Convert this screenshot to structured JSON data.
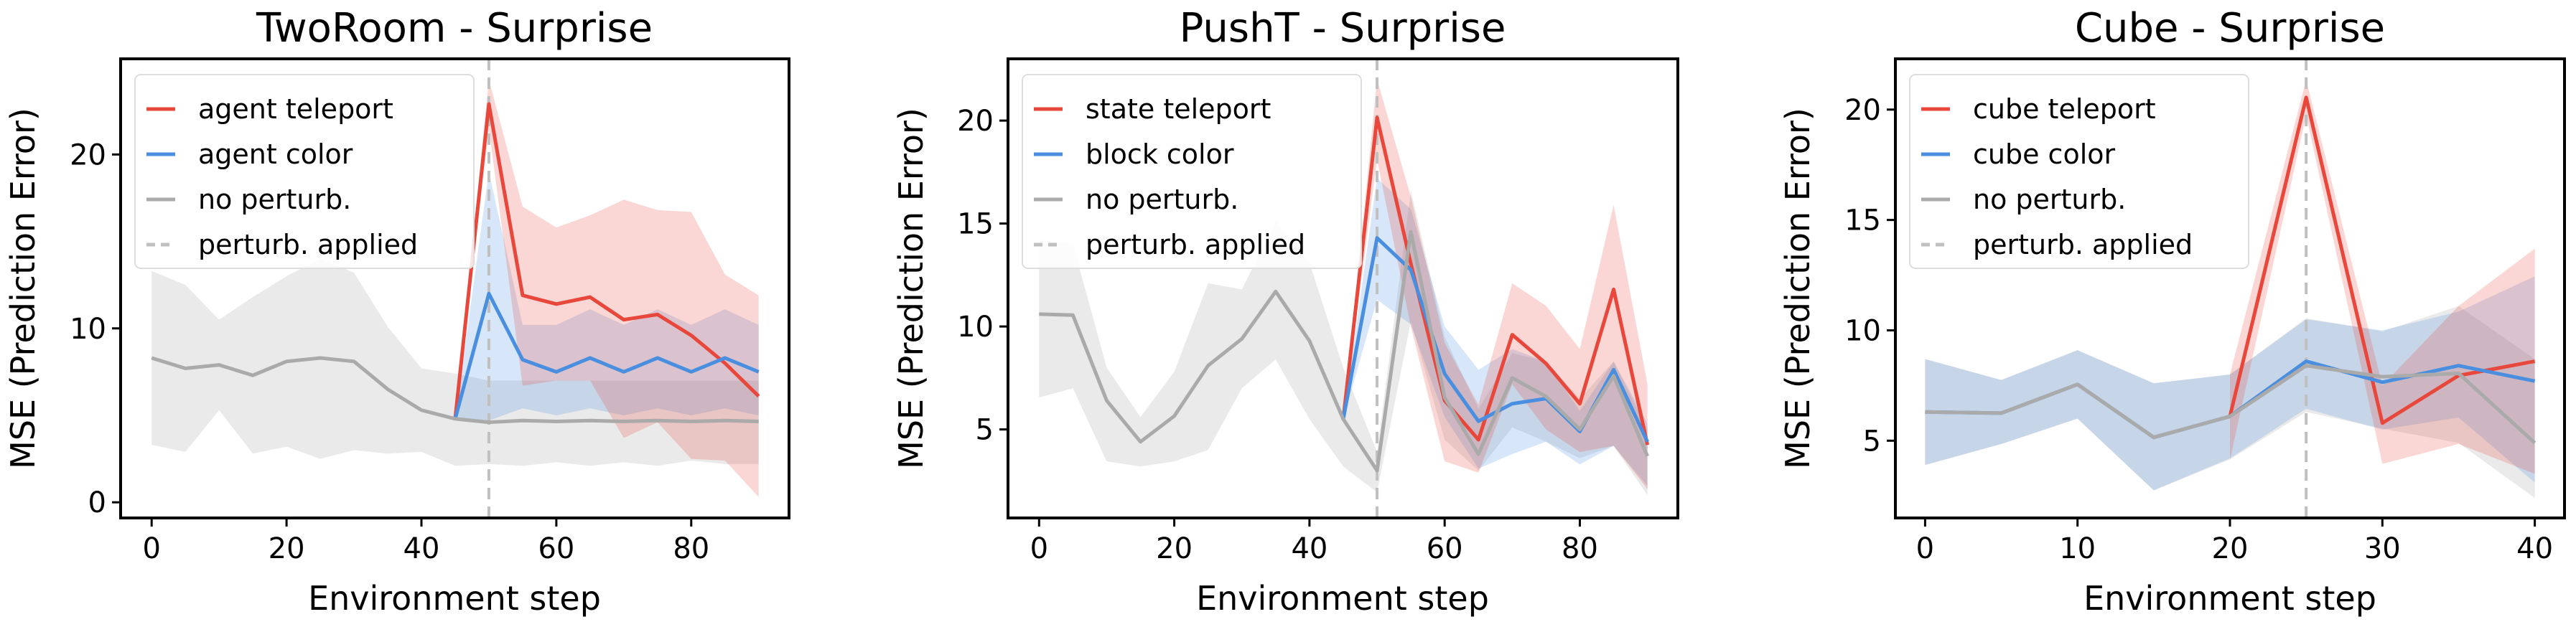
{
  "colors": {
    "teleport": "#e8473c",
    "color": "#4a8fdf",
    "none": "#aaaaaa",
    "perturb": "#c0c0c0"
  },
  "chart_data": [
    {
      "type": "line",
      "title": "TwoRoom - Surprise",
      "xlabel": "Environment step",
      "ylabel": "MSE (Prediction Error)",
      "xlim": [
        -4.6,
        94.5
      ],
      "ylim": [
        -0.9,
        25.5
      ],
      "xticks": [
        0,
        20,
        40,
        60,
        80
      ],
      "yticks": [
        0,
        10,
        20
      ],
      "grid": false,
      "legend_position": "top-left",
      "perturb_step": 50,
      "series": [
        {
          "name": "agent teleport",
          "key": "teleport",
          "x": [
            45,
            50,
            55,
            60,
            65,
            70,
            75,
            80,
            85,
            90
          ],
          "y": [
            4.8,
            22.9,
            11.9,
            11.4,
            11.8,
            10.5,
            10.8,
            9.6,
            8.0,
            6.1
          ],
          "upper": [
            4.8,
            24.3,
            17.0,
            15.8,
            16.5,
            17.4,
            16.8,
            16.7,
            13.1,
            11.9
          ],
          "lower": [
            4.8,
            21.5,
            6.7,
            7.0,
            7.0,
            3.7,
            4.6,
            2.5,
            2.4,
            0.3
          ]
        },
        {
          "name": "agent color",
          "key": "color",
          "x": [
            45,
            50,
            55,
            60,
            65,
            70,
            75,
            80,
            85,
            90
          ],
          "y": [
            4.8,
            12.0,
            8.2,
            7.5,
            8.3,
            7.5,
            8.3,
            7.5,
            8.3,
            7.5
          ],
          "upper": [
            4.8,
            19.0,
            10.2,
            10.2,
            11.1,
            10.2,
            11.1,
            10.2,
            11.1,
            10.2
          ],
          "lower": [
            4.8,
            4.7,
            5.4,
            5.0,
            5.4,
            5.0,
            5.4,
            5.0,
            5.4,
            5.0
          ]
        },
        {
          "name": "no perturb.",
          "key": "none",
          "x": [
            0,
            5,
            10,
            15,
            20,
            25,
            30,
            35,
            40,
            45,
            50,
            55,
            60,
            65,
            70,
            75,
            80,
            85,
            90
          ],
          "y": [
            8.3,
            7.7,
            7.9,
            7.3,
            8.1,
            8.3,
            8.1,
            6.5,
            5.3,
            4.8,
            4.6,
            4.7,
            4.65,
            4.7,
            4.65,
            4.7,
            4.65,
            4.7,
            4.65
          ],
          "upper": [
            13.3,
            12.5,
            10.5,
            11.8,
            13.0,
            14.0,
            13.2,
            10.1,
            7.7,
            7.4,
            7.0,
            7.0,
            7.0,
            7.0,
            7.0,
            7.0,
            7.0,
            7.0,
            7.0
          ],
          "lower": [
            3.3,
            2.9,
            5.3,
            2.8,
            3.2,
            2.5,
            3.0,
            2.8,
            2.9,
            2.1,
            2.2,
            2.1,
            2.3,
            2.1,
            2.3,
            2.1,
            2.4,
            2.2,
            2.2
          ]
        }
      ]
    },
    {
      "type": "line",
      "title": "PushT - Surprise",
      "xlabel": "Environment step",
      "ylabel": "MSE (Prediction Error)",
      "xlim": [
        -4.6,
        94.5
      ],
      "ylim": [
        0.7,
        23.0
      ],
      "xticks": [
        0,
        20,
        40,
        60,
        80
      ],
      "yticks": [
        5,
        10,
        15,
        20
      ],
      "grid": false,
      "legend_position": "top-left",
      "perturb_step": 50,
      "series": [
        {
          "name": "state teleport",
          "key": "teleport",
          "x": [
            45,
            50,
            55,
            60,
            65,
            70,
            75,
            80,
            85,
            90
          ],
          "y": [
            5.5,
            20.15,
            13.05,
            6.4,
            4.5,
            9.6,
            8.2,
            6.25,
            11.8,
            4.25
          ],
          "upper": [
            5.5,
            22.0,
            16.3,
            9.2,
            6.2,
            12.1,
            11.0,
            8.9,
            15.9,
            7.2
          ],
          "lower": [
            5.5,
            18.1,
            10.0,
            3.45,
            2.9,
            7.2,
            5.0,
            3.9,
            4.2,
            2.1
          ]
        },
        {
          "name": "block color",
          "key": "color",
          "x": [
            45,
            50,
            55,
            60,
            65,
            70,
            75,
            80,
            85,
            90
          ],
          "y": [
            5.5,
            14.3,
            12.75,
            7.7,
            5.4,
            6.25,
            6.5,
            4.9,
            7.9,
            4.4
          ],
          "upper": [
            5.5,
            17.2,
            15.7,
            10.0,
            7.9,
            8.9,
            8.3,
            5.9,
            8.3,
            5.3
          ],
          "lower": [
            5.5,
            11.3,
            10.1,
            5.6,
            3.1,
            3.8,
            4.4,
            3.3,
            4.2,
            2.25
          ]
        },
        {
          "name": "no perturb.",
          "key": "none",
          "x": [
            0,
            5,
            10,
            15,
            20,
            25,
            30,
            35,
            40,
            45,
            50,
            55,
            60,
            65,
            70,
            75,
            80,
            85,
            90
          ],
          "y": [
            10.6,
            10.55,
            6.4,
            4.4,
            5.65,
            8.1,
            9.4,
            11.7,
            9.3,
            5.5,
            3.0,
            14.6,
            6.55,
            3.8,
            7.5,
            6.6,
            5.0,
            7.6,
            3.7
          ],
          "upper": [
            14.2,
            14.0,
            8.0,
            5.6,
            7.8,
            12.1,
            11.8,
            15.1,
            13.1,
            8.0,
            3.9,
            16.6,
            9.5,
            6.0,
            8.7,
            8.3,
            6.5,
            8.3,
            5.0
          ],
          "lower": [
            6.55,
            7.0,
            3.45,
            3.2,
            3.45,
            4.0,
            7.0,
            8.4,
            5.5,
            3.2,
            1.95,
            10.25,
            4.5,
            3.0,
            5.1,
            4.4,
            3.6,
            4.2,
            1.8
          ]
        }
      ]
    },
    {
      "type": "line",
      "title": "Cube - Surprise",
      "xlabel": "Environment step",
      "ylabel": "MSE (Prediction Error)",
      "xlim": [
        -1.95,
        41.95
      ],
      "ylim": [
        1.5,
        22.3
      ],
      "xticks": [
        0,
        10,
        20,
        30,
        40
      ],
      "yticks": [
        5,
        10,
        15,
        20
      ],
      "grid": false,
      "legend_position": "top-left",
      "perturb_step": 25,
      "series": [
        {
          "name": "cube teleport",
          "key": "teleport",
          "x": [
            20,
            25,
            30,
            35,
            40
          ],
          "y": [
            6.1,
            20.55,
            5.8,
            7.95,
            8.6
          ],
          "upper": [
            8.0,
            21.35,
            7.5,
            11.1,
            13.7
          ],
          "lower": [
            4.15,
            19.75,
            3.95,
            4.85,
            3.5
          ]
        },
        {
          "name": "cube color",
          "key": "color",
          "x": [
            0,
            5,
            10,
            15,
            20,
            25,
            30,
            35,
            40
          ],
          "y": [
            6.3,
            6.25,
            7.55,
            5.15,
            6.1,
            8.6,
            7.65,
            8.4,
            7.7
          ],
          "upper": [
            8.7,
            7.75,
            9.1,
            7.6,
            8.0,
            10.5,
            10.0,
            10.85,
            12.45
          ],
          "lower": [
            3.9,
            4.85,
            6.0,
            2.75,
            4.2,
            6.45,
            5.5,
            6.05,
            3.1
          ]
        },
        {
          "name": "no perturb.",
          "key": "none",
          "x": [
            0,
            5,
            10,
            15,
            20,
            25,
            30,
            35,
            40
          ],
          "y": [
            6.3,
            6.25,
            7.55,
            5.15,
            6.1,
            8.4,
            7.9,
            8.05,
            4.9
          ],
          "upper": [
            8.7,
            7.75,
            9.1,
            7.6,
            8.0,
            10.55,
            9.95,
            11.1,
            8.7
          ],
          "lower": [
            3.9,
            4.85,
            6.0,
            2.75,
            4.15,
            6.3,
            5.55,
            4.9,
            2.4
          ]
        }
      ],
      "legend_extra": "perturb. applied"
    }
  ],
  "legend_perturb_label": "perturb. applied"
}
